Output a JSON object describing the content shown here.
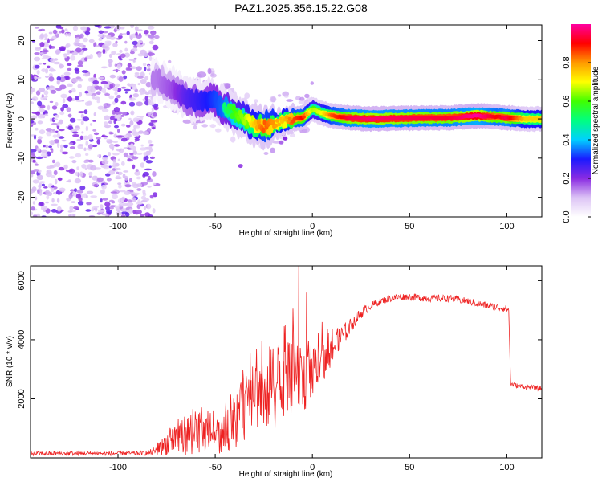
{
  "title": "PAZ1.2025.356.15.22.G08",
  "chart_data": [
    {
      "type": "heatmap",
      "name": "spectrogram",
      "xlabel": "Height of straight line (km)",
      "ylabel": "Frequency (Hz)",
      "xlim": [
        -145,
        118
      ],
      "ylim": [
        -25,
        24
      ],
      "xticks": [
        -100,
        -50,
        0,
        50,
        100
      ],
      "xtick_labels": [
        "-100",
        "-50",
        "0",
        "50",
        "100"
      ],
      "yticks": [
        -20,
        -10,
        0,
        10,
        20
      ],
      "ytick_labels": [
        "-20",
        "-10",
        "0",
        "10",
        "20"
      ],
      "colorbar": {
        "label": "Normalized spectral amplitude",
        "range": [
          0,
          1
        ],
        "ticks": [
          0,
          0.2,
          0.4,
          0.6,
          0.8
        ],
        "tick_labels": [
          "0.0",
          "0.2",
          "0.4",
          "0.6",
          "0.8"
        ],
        "colors": [
          "#ffffff",
          "#dcc3f5",
          "#8a2be2",
          "#1a1aff",
          "#00d0ff",
          "#00ff80",
          "#40ff00",
          "#ffff00",
          "#ff9900",
          "#ff0000",
          "#ff00a0"
        ]
      },
      "noise_region_x": [
        -145,
        -80
      ],
      "ridge": {
        "x": [
          -80,
          -72,
          -65,
          -58,
          -52,
          -46,
          -40,
          -35,
          -30,
          -25,
          -20,
          -15,
          -10,
          -5,
          0,
          5,
          10,
          20,
          30,
          50,
          70,
          85,
          95,
          100,
          110,
          118
        ],
        "freq": [
          10,
          8,
          5,
          4.5,
          5.5,
          3,
          1.5,
          0,
          -1.5,
          -2,
          -1.5,
          -0.5,
          0,
          0.3,
          2.5,
          1.5,
          0.8,
          0.2,
          0,
          0.2,
          0.3,
          0.8,
          0.5,
          0.3,
          0,
          0
        ],
        "amplitude": [
          0.15,
          0.2,
          0.3,
          0.35,
          0.4,
          0.45,
          0.55,
          0.6,
          0.7,
          0.8,
          0.75,
          0.7,
          0.8,
          0.85,
          0.6,
          0.65,
          0.8,
          0.9,
          0.92,
          0.9,
          0.88,
          0.95,
          0.85,
          0.9,
          0.7,
          0.7
        ]
      }
    },
    {
      "type": "line",
      "name": "snr",
      "xlabel": "Height of straight line (km)",
      "ylabel": "SNR (10 * v/v)",
      "xlim": [
        -145,
        118
      ],
      "ylim": [
        0,
        6500
      ],
      "xticks": [
        -100,
        -50,
        0,
        50,
        100
      ],
      "xtick_labels": [
        "-100",
        "-50",
        "0",
        "50",
        "100"
      ],
      "yticks": [
        2000,
        4000,
        6000
      ],
      "ytick_labels": [
        "2000",
        "4000",
        "6000"
      ],
      "color": "#ee2222",
      "series": [
        {
          "name": "SNR",
          "x": [
            -145,
            -100,
            -85,
            -80,
            -75,
            -70,
            -65,
            -60,
            -55,
            -50,
            -45,
            -40,
            -35,
            -30,
            -25,
            -20,
            -15,
            -10,
            -5,
            0,
            5,
            10,
            15,
            20,
            25,
            30,
            35,
            40,
            45,
            50,
            60,
            70,
            80,
            90,
            95,
            100,
            101,
            102,
            105,
            110,
            118
          ],
          "mean": [
            150,
            150,
            160,
            250,
            500,
            700,
            800,
            850,
            800,
            700,
            800,
            1200,
            1700,
            2100,
            2300,
            2400,
            2500,
            2600,
            2600,
            2800,
            3200,
            3700,
            4100,
            4500,
            4900,
            5150,
            5300,
            5400,
            5450,
            5450,
            5400,
            5400,
            5300,
            5150,
            5100,
            5050,
            5000,
            2500,
            2450,
            2400,
            2350
          ],
          "jitter": [
            70,
            70,
            80,
            150,
            400,
            600,
            700,
            750,
            650,
            550,
            650,
            900,
            1100,
            1300,
            1400,
            1500,
            1500,
            1300,
            1100,
            900,
            700,
            550,
            400,
            250,
            180,
            130,
            120,
            120,
            120,
            120,
            120,
            120,
            120,
            120,
            120,
            120,
            120,
            80,
            80,
            80,
            80
          ]
        }
      ],
      "spikes": [
        {
          "x": -7,
          "value": 6500
        },
        {
          "x": -3,
          "value": 5600
        },
        {
          "x": -10,
          "value": 5050
        },
        {
          "x": -14,
          "value": 4500
        },
        {
          "x": 5,
          "value": 4600
        }
      ]
    }
  ]
}
